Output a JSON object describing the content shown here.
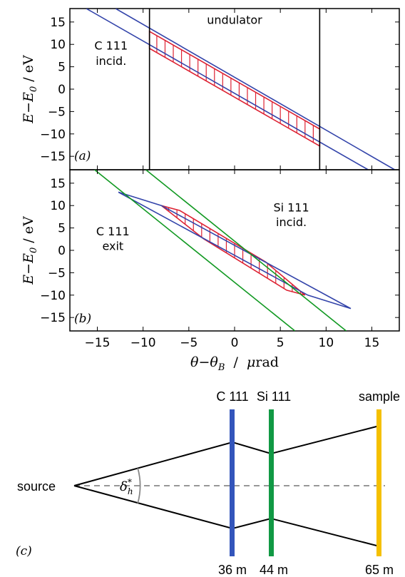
{
  "colors": {
    "blue_line": "#3344aa",
    "green_line": "#119922",
    "red_region": "#dd2233",
    "black": "#000000",
    "c111_crystal": "#3355bb",
    "si111_crystal": "#119944",
    "sample": "#f5c000",
    "dashed_axis": "#777777",
    "angle_arc": "#888888"
  },
  "chart_data": [
    {
      "type": "line",
      "panel_label": "(a)",
      "xlim": [
        -18,
        18
      ],
      "ylim": [
        -18,
        18
      ],
      "yticks": [
        -15,
        -10,
        -5,
        0,
        5,
        10,
        15
      ],
      "ytick_labels": [
        "−15",
        "−10",
        "−5",
        "0",
        "5",
        "10",
        "15"
      ],
      "ylabel_main": "E",
      "ylabel_minus": "−",
      "ylabel_sub_base": "E",
      "ylabel_sub_index": "0",
      "ylabel_unit": " / eV",
      "series": [
        {
          "color": "blue",
          "x": [
            -13.0,
            17.5
          ],
          "y": [
            18,
            -18
          ]
        },
        {
          "color": "blue",
          "x": [
            -16.2,
            14.6
          ],
          "y": [
            18,
            -18
          ]
        },
        {
          "color": "black",
          "x": [
            -9.3,
            -9.3
          ],
          "y": [
            18,
            -18
          ]
        },
        {
          "color": "black",
          "x": [
            9.3,
            9.3
          ],
          "y": [
            18,
            -18
          ]
        }
      ],
      "region": {
        "color": "red",
        "x": [
          -9.3,
          9.3,
          9.3,
          -9.3
        ],
        "y": [
          12.9,
          -8.9,
          -12.7,
          9.1
        ],
        "hatch_x_start": -8.5,
        "hatch_x_step": 0.9
      },
      "annotations": [
        {
          "text": "undulator",
          "x": 0,
          "y": 15.5
        },
        {
          "text": "C 111",
          "x": -13.5,
          "y": 9.8
        },
        {
          "text": "incid.",
          "x": -13.5,
          "y": 6.4
        }
      ]
    },
    {
      "type": "line",
      "panel_label": "(b)",
      "xlim": [
        -18,
        18
      ],
      "ylim": [
        -18,
        18
      ],
      "xticks": [
        -15,
        -10,
        -5,
        0,
        5,
        10,
        15
      ],
      "xtick_labels": [
        "−15",
        "−10",
        "−5",
        "0",
        "5",
        "10",
        "15"
      ],
      "yticks": [
        -15,
        -10,
        -5,
        0,
        5,
        10,
        15
      ],
      "ytick_labels": [
        "−15",
        "−10",
        "−5",
        "0",
        "5",
        "10",
        "15"
      ],
      "ylabel_main": "E",
      "ylabel_minus": "−",
      "ylabel_sub_base": "E",
      "ylabel_sub_index": "0",
      "ylabel_unit": " / eV",
      "xlabel_main": "θ",
      "xlabel_minus": "−",
      "xlabel_sub_base": "θ",
      "xlabel_sub_index": "B",
      "xlabel_unit_sep": "  /  ",
      "xlabel_mu": "μ",
      "xlabel_unit_rest": "rad",
      "series": [
        {
          "color": "blue",
          "x": [
            -12.7,
            -8.0,
            12.7,
            8.0,
            -12.7
          ],
          "y": [
            13.0,
            10.0,
            -13.0,
            -10.0,
            13.0
          ]
        },
        {
          "color": "green",
          "x": [
            -9.7,
            12.2
          ],
          "y": [
            18,
            -18
          ]
        },
        {
          "color": "green",
          "x": [
            -15.3,
            6.6
          ],
          "y": [
            18,
            -18
          ]
        }
      ],
      "region": {
        "color": "red",
        "x": [
          -8.0,
          -6.0,
          3.4,
          7.7,
          5.7,
          -3.4
        ],
        "y": [
          10.0,
          8.9,
          -2.6,
          -10.0,
          -8.9,
          2.6
        ],
        "hatch_x_start": -7.2,
        "hatch_x_step": 0.9
      },
      "annotations": [
        {
          "text": "Si 111",
          "x": 6.2,
          "y": 9.6
        },
        {
          "text": "incid.",
          "x": 6.2,
          "y": 6.4
        },
        {
          "text": "C 111",
          "x": -13.3,
          "y": 4.3
        },
        {
          "text": "exit",
          "x": -13.3,
          "y": 1.0
        }
      ]
    }
  ],
  "diagram": {
    "panel_label": "(c)",
    "source_label": "source",
    "angle_label_base": "δ",
    "angle_label_sup": "*",
    "angle_label_sub": "h",
    "elements": [
      {
        "name": "C 111",
        "distance": "36 m",
        "color": "#3355bb"
      },
      {
        "name": "Si 111",
        "distance": "44 m",
        "color": "#119944"
      },
      {
        "name": "sample",
        "distance": "65 m",
        "color": "#f5c000"
      }
    ]
  }
}
